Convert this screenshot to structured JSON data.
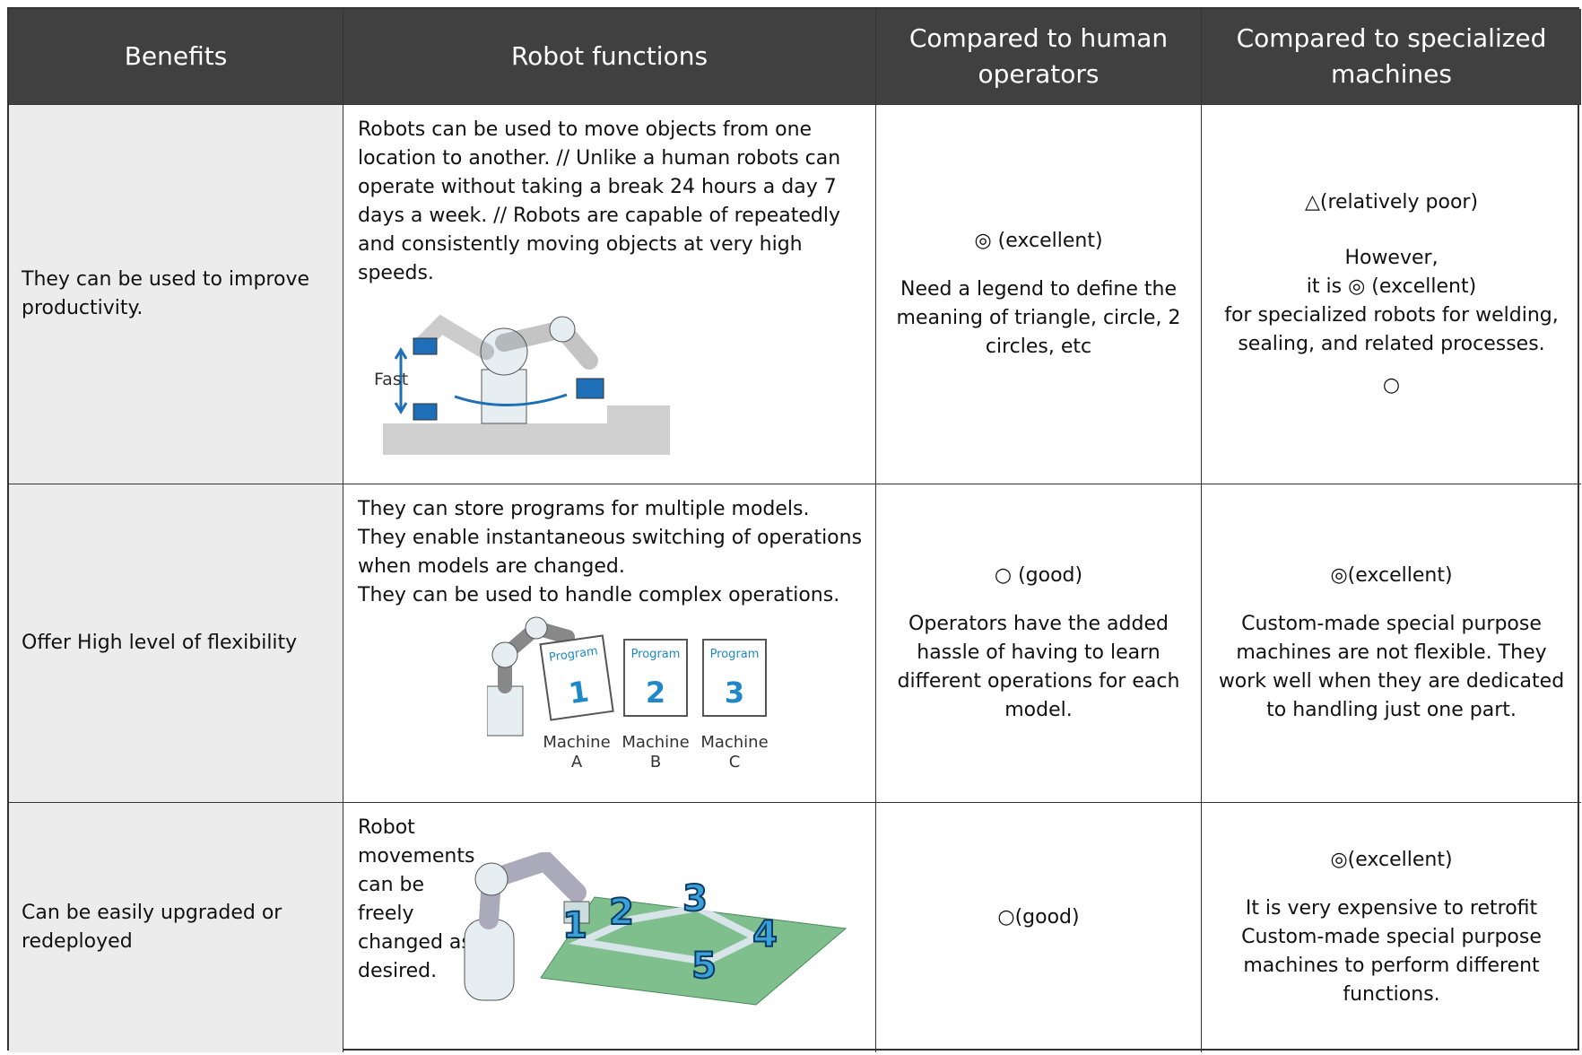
{
  "table": {
    "header": [
      "Benefits",
      "Robot functions",
      "Compared to human operators",
      "Compared to specialized machines"
    ],
    "rows": [
      {
        "benefit": "They can be used to improve productivity.",
        "functions": [
          "Robots can be used to move objects from one location to another. // Unlike a human robots can operate without taking a break 24 hours a day 7 days a week. // Robots are capable of repeatedly and consistently moving objects at very high speeds."
        ],
        "figure": {
          "label": "Fast"
        },
        "human": [
          "◎ (excellent)",
          "Need a legend to define the meaning of triangle, circle, 2 circles, etc"
        ],
        "specialized": [
          "△(relatively poor)",
          "However,",
          "it is ◎ (excellent)",
          "for specialized robots for welding, sealing, and related processes.",
          "○"
        ]
      },
      {
        "benefit": "Offer High level of flexibility",
        "functions": [
          "They can store programs for multiple models.",
          "They enable instantaneous switching of operations when models are changed.",
          "They can be used to handle complex operations."
        ],
        "figure": {
          "programs": [
            {
              "title": "Program",
              "number": "1",
              "machine": "Machine",
              "id": "A"
            },
            {
              "title": "Program",
              "number": "2",
              "machine": "Machine",
              "id": "B"
            },
            {
              "title": "Program",
              "number": "3",
              "machine": "Machine",
              "id": "C"
            }
          ]
        },
        "human": [
          "○ (good)",
          "Operators have the added hassle of having to learn different operations for each model."
        ],
        "specialized": [
          "◎(excellent)",
          "Custom-made special purpose machines are not flexible. They work well when they are dedicated to handling just one part."
        ]
      },
      {
        "benefit": "Can be easily upgraded or redeployed",
        "functions": [
          "Robot movements can be freely changed as desired."
        ],
        "figure": {
          "steps": [
            "1",
            "2",
            "3",
            "4",
            "5"
          ]
        },
        "human": [
          "○(good)"
        ],
        "specialized": [
          "◎(excellent)",
          "It is very expensive to retrofit Custom-made special purpose machines to perform different functions."
        ]
      }
    ]
  }
}
